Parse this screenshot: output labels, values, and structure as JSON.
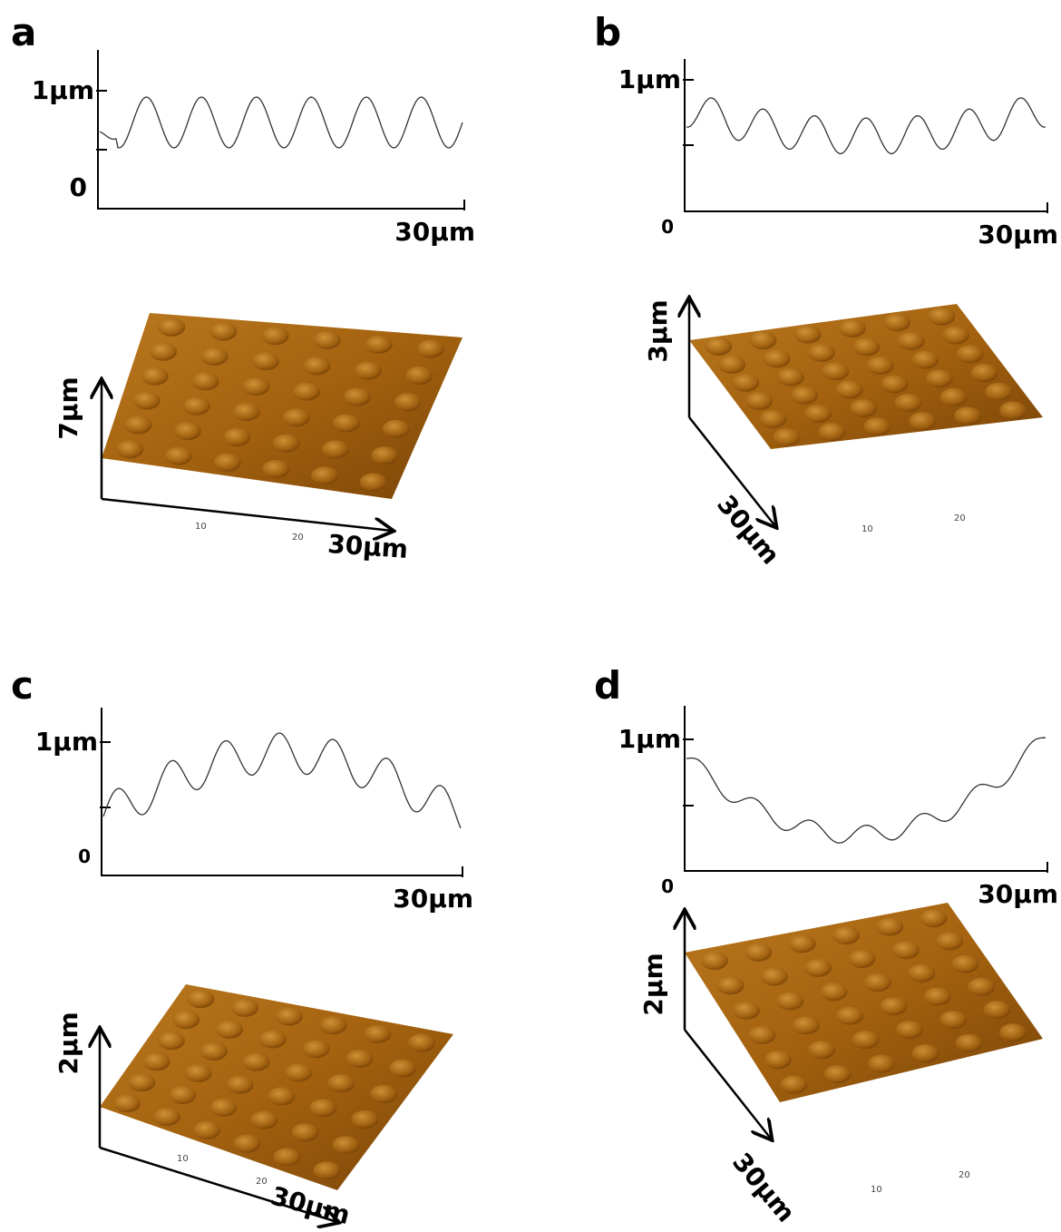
{
  "panels": [
    {
      "label": "a",
      "profile": {
        "y_top": "1µm",
        "y_zero": "0",
        "x_end": "30µm"
      },
      "surface": {
        "z_label": "7µm",
        "x_label": "30µm",
        "ticks": [
          "10",
          "20"
        ]
      }
    },
    {
      "label": "b",
      "profile": {
        "y_top": "1µm",
        "y_zero": "0",
        "x_end": "30µm"
      },
      "surface": {
        "z_label": "3µm",
        "x_label": "30µm",
        "ticks": [
          "10",
          "20"
        ]
      }
    },
    {
      "label": "c",
      "profile": {
        "y_top": "1µm",
        "y_zero": "0",
        "x_end": "30µm"
      },
      "surface": {
        "z_label": "2µm",
        "x_label": "30µm",
        "ticks": [
          "10",
          "20"
        ]
      }
    },
    {
      "label": "d",
      "profile": {
        "y_top": "1µm",
        "y_zero": "0",
        "x_end": "30µm"
      },
      "surface": {
        "z_label": "2µm",
        "x_label": "30µm",
        "ticks": [
          "10",
          "20"
        ]
      }
    }
  ]
}
